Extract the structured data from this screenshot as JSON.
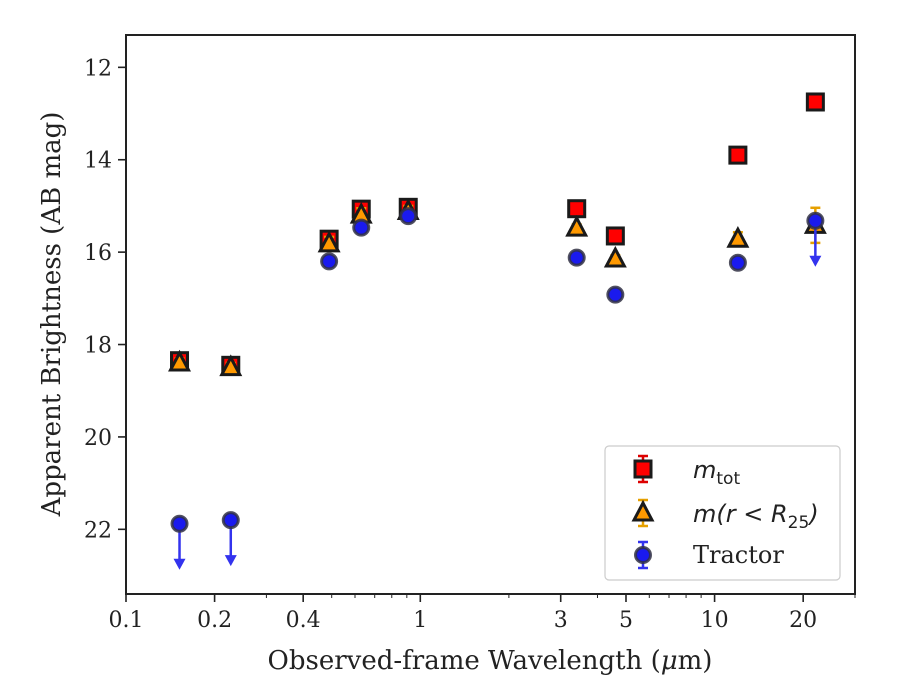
{
  "chart_data": {
    "type": "scatter",
    "title": "",
    "xlabel_main": "Observed-frame Wavelength (",
    "xlabel_mu": "μ",
    "xlabel_end": "m)",
    "ylabel": "Apparent Brightness (AB mag)",
    "xscale": "log",
    "xlim": [
      0.1,
      30
    ],
    "ylim": [
      23.4,
      11.3
    ],
    "y_inverted": true,
    "grid": false,
    "legend_position": "lower-right",
    "xticks": [
      {
        "value": 0.1,
        "label": "0.1"
      },
      {
        "value": 0.2,
        "label": "0.2"
      },
      {
        "value": 0.4,
        "label": "0.4"
      },
      {
        "value": 1,
        "label": "1"
      },
      {
        "value": 3,
        "label": "3"
      },
      {
        "value": 5,
        "label": "5"
      },
      {
        "value": 10,
        "label": "10"
      },
      {
        "value": 20,
        "label": "20"
      }
    ],
    "yticks": [
      {
        "value": 12,
        "label": "12"
      },
      {
        "value": 14,
        "label": "14"
      },
      {
        "value": 16,
        "label": "16"
      },
      {
        "value": 18,
        "label": "18"
      },
      {
        "value": 20,
        "label": "20"
      },
      {
        "value": 22,
        "label": "22"
      }
    ],
    "series": [
      {
        "key": "mtot",
        "legend_italic": "m",
        "legend_sub": "tot",
        "legend_rest": "",
        "marker": "square",
        "color": "#ff0000",
        "edge": "#1a1a1a",
        "errcolor": "#dd0000",
        "x": [
          0.152,
          0.227,
          0.49,
          0.63,
          0.91,
          3.4,
          4.6,
          12.0,
          22.0
        ],
        "y": [
          18.35,
          18.45,
          15.72,
          15.07,
          15.03,
          15.06,
          15.65,
          13.9,
          12.75
        ],
        "err": [
          0.12,
          0.12,
          0.12,
          0.12,
          0.1,
          0.06,
          0.06,
          0.04,
          0.06
        ],
        "upper_limit": [
          false,
          false,
          false,
          false,
          false,
          false,
          false,
          false,
          false
        ]
      },
      {
        "key": "mr25",
        "legend_italic": "m",
        "legend_sub": "",
        "legend_rest": "(r < R",
        "legend_rest_sub": "25",
        "legend_close": ")",
        "marker": "triangle",
        "color": "#ff9900",
        "edge": "#1a1a1a",
        "errcolor": "#e6a000",
        "x": [
          0.152,
          0.227,
          0.49,
          0.63,
          0.91,
          3.4,
          4.6,
          12.0,
          22.0
        ],
        "y": [
          18.4,
          18.5,
          15.82,
          15.2,
          15.12,
          15.48,
          16.15,
          15.72,
          15.42
        ],
        "err": [
          0.1,
          0.1,
          0.15,
          0.15,
          0.12,
          0.08,
          0.08,
          0.15,
          0.38
        ],
        "upper_limit": [
          false,
          false,
          false,
          false,
          false,
          false,
          false,
          false,
          false
        ]
      },
      {
        "key": "tractor",
        "legend_text": "Tractor",
        "marker": "circle",
        "color": "#1a1aee",
        "edge": "#333344",
        "errcolor": "#3333ee",
        "x": [
          0.152,
          0.227,
          0.49,
          0.63,
          0.91,
          3.4,
          4.6,
          12.0,
          22.0
        ],
        "y": [
          21.88,
          21.8,
          16.2,
          15.47,
          15.22,
          16.12,
          16.92,
          16.23,
          15.32
        ],
        "err": [
          0,
          0,
          0.05,
          0.05,
          0.05,
          0.05,
          0.05,
          0.05,
          0
        ],
        "upper_limit": [
          true,
          true,
          false,
          false,
          false,
          false,
          false,
          false,
          true
        ]
      }
    ]
  }
}
